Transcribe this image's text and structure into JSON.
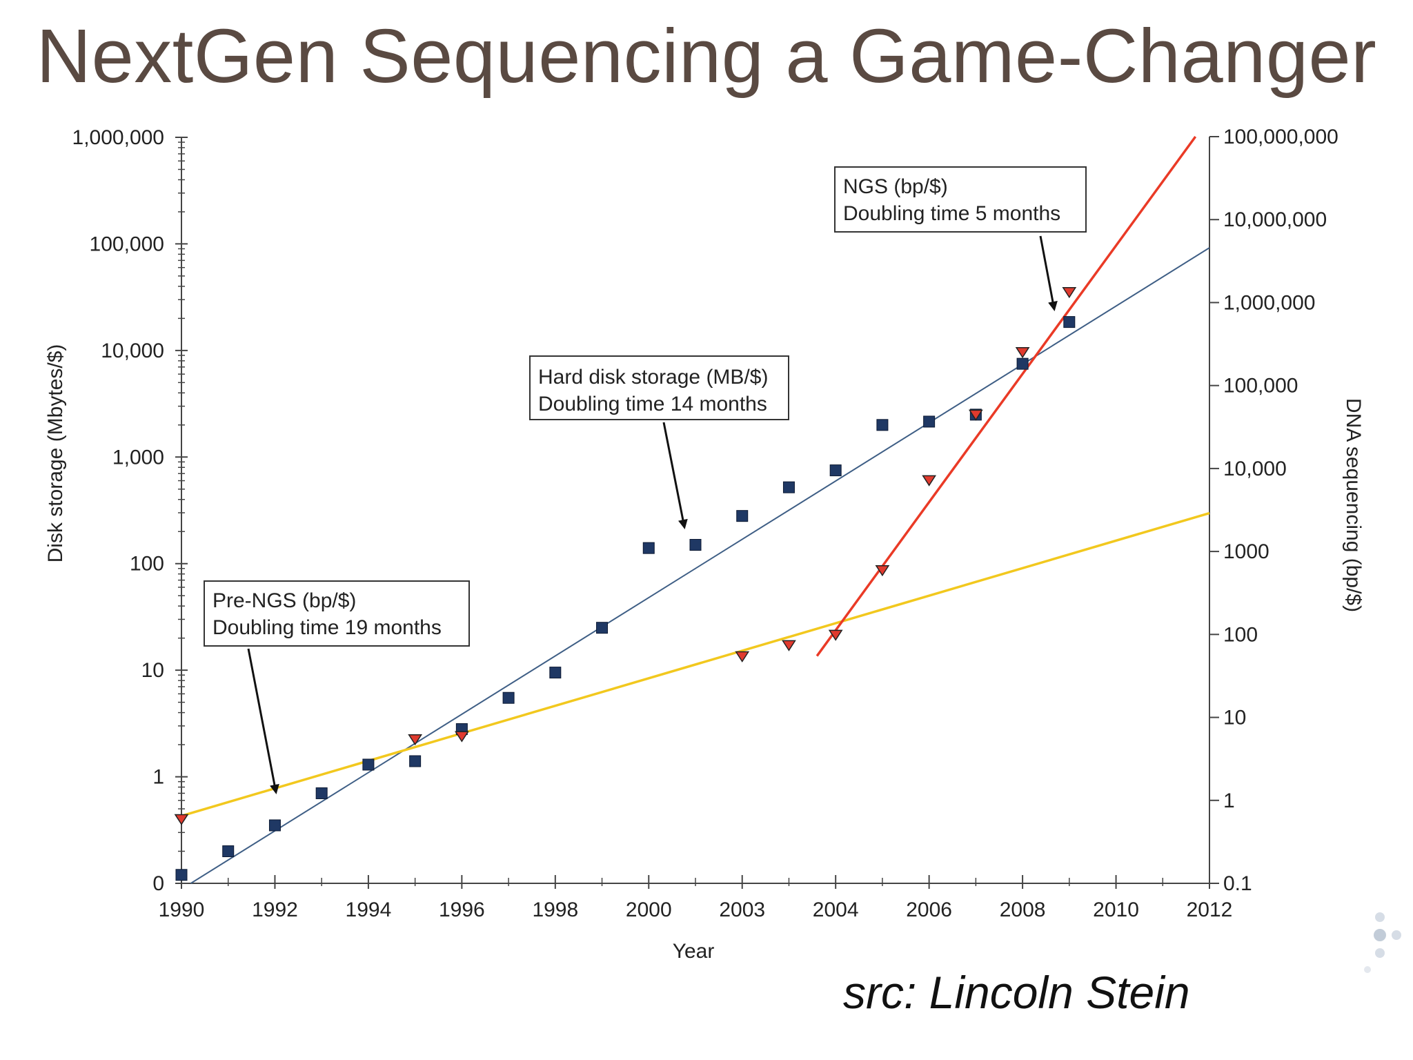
{
  "slide_title": "NextGen Sequencing a Game-Changer",
  "credit": "src: Lincoln Stein",
  "chart_data": {
    "type": "scatter",
    "title": "",
    "xlabel": "Year",
    "ylabel_left": "Disk storage (Mbytes/$)",
    "ylabel_right": "DNA sequencing (bp/$)",
    "x_ticks": [
      "1990",
      "1992",
      "1994",
      "1996",
      "1998",
      "2000",
      "2003",
      "2004",
      "2006",
      "2008",
      "2010",
      "2012"
    ],
    "x_range": [
      1990,
      2012
    ],
    "y_left": {
      "scale": "log",
      "ticks": [
        "0",
        "1",
        "10",
        "100",
        "1,000",
        "10,000",
        "100,000",
        "1,000,000"
      ],
      "tick_values": [
        0.1,
        1,
        10,
        100,
        1000,
        10000,
        100000,
        1000000
      ]
    },
    "y_right": {
      "scale": "log",
      "ticks": [
        "0.1",
        "1",
        "10",
        "100",
        "1000",
        "10,000",
        "100,000",
        "1,000,000",
        "10,000,000",
        "100,000,000"
      ],
      "tick_values": [
        0.1,
        1,
        10,
        100,
        1000,
        10000,
        100000,
        1000000,
        10000000,
        100000000
      ]
    },
    "series": [
      {
        "name": "Hard disk storage (MB/$)",
        "axis": "left",
        "marker": "square",
        "color": "#1f3864",
        "points": [
          [
            1990,
            0.12
          ],
          [
            1991,
            0.2
          ],
          [
            1992,
            0.35
          ],
          [
            1993,
            0.7
          ],
          [
            1994,
            1.3
          ],
          [
            1995,
            1.4
          ],
          [
            1996,
            2.8
          ],
          [
            1997,
            5.5
          ],
          [
            1998,
            9.5
          ],
          [
            1999,
            25
          ],
          [
            2000,
            140
          ],
          [
            2001,
            150
          ],
          [
            2002,
            280
          ],
          [
            2003,
            520
          ],
          [
            2004,
            750
          ],
          [
            2005,
            2000
          ],
          [
            2006,
            2150
          ],
          [
            2007,
            2500
          ],
          [
            2008,
            7500
          ],
          [
            2009,
            18500
          ]
        ]
      },
      {
        "name": "DNA sequencing (bp/$)",
        "axis": "right",
        "marker": "triangle-down",
        "color": "#e03a2e",
        "points": [
          [
            1990,
            0.6
          ],
          [
            1995,
            5.5
          ],
          [
            1996,
            6
          ],
          [
            2002,
            55
          ],
          [
            2003,
            75
          ],
          [
            2004,
            100
          ],
          [
            2005,
            600
          ],
          [
            2006,
            7300
          ],
          [
            2007,
            45000
          ],
          [
            2008,
            255000
          ],
          [
            2009,
            1350000
          ]
        ]
      }
    ],
    "trend_lines": [
      {
        "name": "Hard disk storage",
        "axis": "left",
        "color": "#3e5e85",
        "from": [
          1990.2,
          0.1
        ],
        "to": [
          2012,
          92000
        ]
      },
      {
        "name": "Pre-NGS",
        "axis": "right",
        "color": "#f2c81e",
        "from": [
          1990,
          0.65
        ],
        "to": [
          2012,
          2900
        ]
      },
      {
        "name": "NGS",
        "axis": "right",
        "color": "#ea3a26",
        "from": [
          2003.6,
          55
        ],
        "to": [
          2011.7,
          100000000
        ]
      }
    ],
    "annotations": [
      {
        "lines": [
          "NGS (bp/$)",
          "Doubling time 5 months"
        ]
      },
      {
        "lines": [
          "Hard disk storage (MB/$)",
          "Doubling time 14 months"
        ]
      },
      {
        "lines": [
          "Pre-NGS (bp/$)",
          "Doubling time 19 months"
        ]
      }
    ],
    "grid": false
  }
}
